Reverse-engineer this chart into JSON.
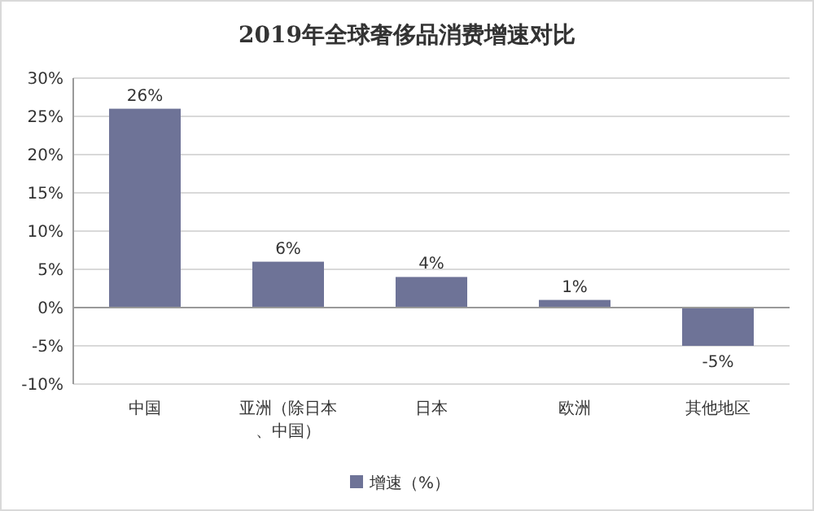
{
  "chart_data": {
    "type": "bar",
    "title": "2019年全球奢侈品消费增速对比",
    "categories": [
      "中国",
      "亚洲（除日本、中国）",
      "日本",
      "欧洲",
      "其他地区"
    ],
    "series": [
      {
        "name": "增速（%）",
        "color": "#6e7397",
        "values": [
          26,
          6,
          4,
          1,
          -5
        ]
      }
    ],
    "value_labels": [
      "26%",
      "6%",
      "4%",
      "1%",
      "-5%"
    ],
    "ylim": [
      -10,
      30
    ],
    "yticks": [
      {
        "value": -10,
        "label": "-10%"
      },
      {
        "value": -5,
        "label": "-5%"
      },
      {
        "value": 0,
        "label": "0%"
      },
      {
        "value": 5,
        "label": "5%"
      },
      {
        "value": 10,
        "label": "10%"
      },
      {
        "value": 15,
        "label": "15%"
      },
      {
        "value": 20,
        "label": "20%"
      },
      {
        "value": 25,
        "label": "25%"
      },
      {
        "value": 30,
        "label": "30%"
      }
    ],
    "grid": "y",
    "legend": "bottom"
  }
}
